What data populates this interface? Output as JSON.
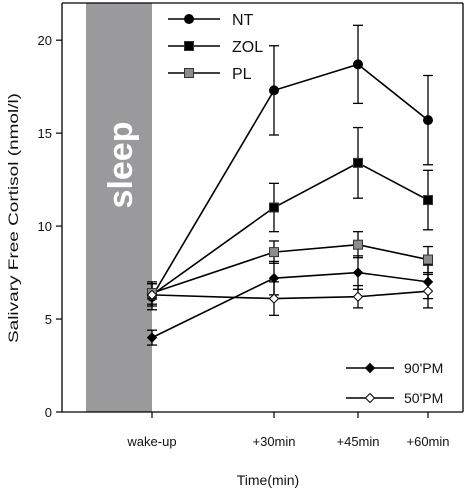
{
  "chart_data": {
    "type": "line",
    "title": "",
    "xlabel": "Time(min)",
    "ylabel": "Salivary Free Cortisol (nmol/l)",
    "ylim": [
      0,
      22
    ],
    "yticks": [
      0,
      5,
      10,
      15,
      20
    ],
    "grid": false,
    "categories": [
      "wake-up",
      "+30min",
      "+45min",
      "+60min"
    ],
    "x_values": [
      0,
      30,
      45,
      60
    ],
    "shaded_region": {
      "label": "sleep",
      "color": "#9a9a9c"
    },
    "series": [
      {
        "name": "NT",
        "marker": "circle",
        "fill": "#000000",
        "values": [
          6.2,
          17.3,
          18.7,
          15.7
        ],
        "errors": [
          0.7,
          2.4,
          2.1,
          2.4
        ],
        "legend_group": "top"
      },
      {
        "name": "ZOL",
        "marker": "square",
        "fill": "#000000",
        "values": [
          6.3,
          11.0,
          13.4,
          11.4
        ],
        "errors": [
          0.6,
          1.3,
          1.9,
          1.6
        ],
        "legend_group": "top"
      },
      {
        "name": "PL",
        "marker": "square",
        "fill": "#8c8c8c",
        "values": [
          6.4,
          8.6,
          9.0,
          8.2
        ],
        "errors": [
          0.6,
          0.6,
          0.7,
          0.7
        ],
        "legend_group": "top"
      },
      {
        "name": "90'PM",
        "marker": "diamond",
        "fill": "#000000",
        "values": [
          4.0,
          7.2,
          7.5,
          7.0
        ],
        "errors": [
          0.4,
          0.9,
          0.9,
          0.9
        ],
        "legend_group": "bottom"
      },
      {
        "name": "50'PM",
        "marker": "diamond",
        "fill": "#ffffff",
        "values": [
          6.3,
          6.1,
          6.2,
          6.5
        ],
        "errors": [
          0.0,
          0.9,
          0.6,
          0.9
        ],
        "legend_group": "bottom"
      }
    ],
    "legend_top_position": "top-left",
    "legend_bottom_position": "bottom-right"
  }
}
